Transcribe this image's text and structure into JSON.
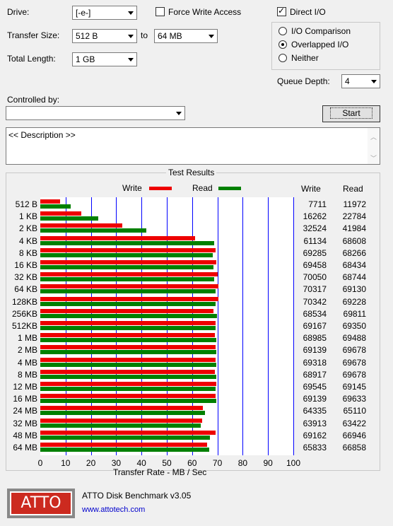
{
  "form": {
    "drive_label": "Drive:",
    "drive_value": "[-e-]",
    "force_write_label": "Force Write Access",
    "transfer_size_label": "Transfer Size:",
    "transfer_from": "512 B",
    "to_label": "to",
    "transfer_to": "64 MB",
    "total_length_label": "Total Length:",
    "total_length_value": "1 GB",
    "direct_io_label": "Direct I/O",
    "io_comparison_label": "I/O Comparison",
    "overlapped_label": "Overlapped I/O",
    "neither_label": "Neither",
    "queue_depth_label": "Queue Depth:",
    "queue_depth_value": "4",
    "controlled_by_label": "Controlled by:",
    "controlled_by_value": "",
    "start_label": "Start",
    "description_text": "<< Description >>"
  },
  "results": {
    "group_label": "Test Results",
    "legend_write": "Write",
    "legend_read": "Read",
    "col_write": "Write",
    "col_read": "Read"
  },
  "chart_data": {
    "type": "bar",
    "orientation": "horizontal",
    "categories": [
      "512 B",
      "1 KB",
      "2 KB",
      "4 KB",
      "8 KB",
      "16 KB",
      "32 KB",
      "64 KB",
      "128KB",
      "256KB",
      "512KB",
      "1 MB",
      "2 MB",
      "4 MB",
      "8 MB",
      "12 MB",
      "16 MB",
      "24 MB",
      "32 MB",
      "48 MB",
      "64 MB"
    ],
    "series": [
      {
        "name": "Write",
        "color": "#ee0000",
        "values": [
          7711,
          16262,
          32524,
          61134,
          69285,
          69458,
          70050,
          70317,
          70342,
          68534,
          69167,
          68985,
          69139,
          69318,
          68917,
          69545,
          69139,
          64335,
          63913,
          69162,
          65833
        ]
      },
      {
        "name": "Read",
        "color": "#008000",
        "values": [
          11972,
          22784,
          41984,
          68608,
          68266,
          68434,
          68744,
          69130,
          69228,
          69811,
          69350,
          69488,
          69678,
          69678,
          69678,
          69145,
          69633,
          65110,
          63422,
          66946,
          66858
        ]
      }
    ],
    "xticks": [
      "0",
      "10",
      "20",
      "30",
      "40",
      "50",
      "60",
      "70",
      "80",
      "90",
      "100"
    ],
    "xlabel": "Transfer Rate - MB / Sec",
    "xlim": [
      0,
      100
    ],
    "grid": true,
    "legend": "top"
  },
  "footer": {
    "logo_text": "ATTO",
    "app_name": "ATTO Disk Benchmark v3.05",
    "link": "www.attotech.com"
  }
}
